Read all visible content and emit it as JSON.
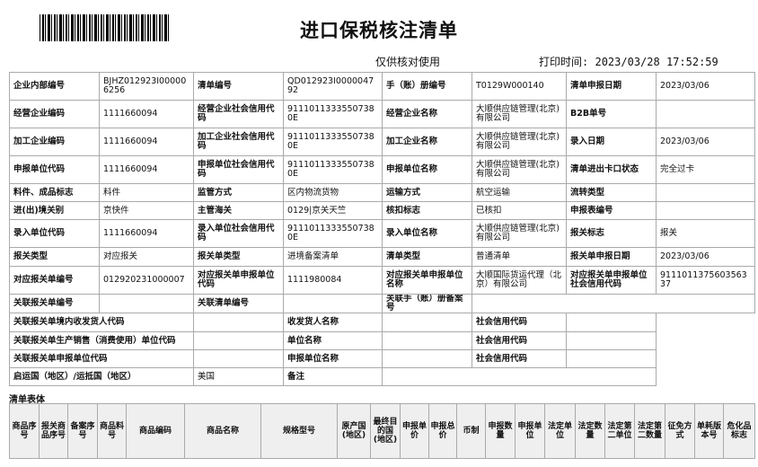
{
  "header": {
    "title": "进口保税核注清单",
    "note": "仅供核对使用",
    "print_time_label": "打印时间:",
    "print_time": "2023/03/28 17:52:59"
  },
  "form": {
    "rows": [
      [
        "企业内部编号",
        "BJHZ012923I000006256",
        "清单编号",
        "QD012923I000004792",
        "手（账）册编号",
        "T0129W000140",
        "清单申报日期",
        "2023/03/06"
      ],
      [
        "经营企业编码",
        "1111660094",
        "经营企业社会信用代码",
        "91110113335507380E",
        "经营企业名称",
        "大顺供应链管理(北京)有限公司",
        "B2B单号"
      ],
      [
        "加工企业编码",
        "1111660094",
        "加工企业社会信用代码",
        "91110113335507380E",
        "加工企业名称",
        "大顺供应链管理(北京)有限公司",
        "录入日期",
        "2023/03/06"
      ],
      [
        "申报单位代码",
        "1111660094",
        "申报单位社会信用代码",
        "91110113335507380E",
        "申报单位名称",
        "大顺供应链管理(北京)有限公司",
        "清单进出卡口状态",
        "完全过卡"
      ],
      [
        "料件、成品标志",
        "料件",
        "监管方式",
        "区内物流货物",
        "运输方式",
        "航空运输",
        "流转类型"
      ],
      [
        "进(出)境关别",
        "京快件",
        "主管海关",
        "0129|京关天竺",
        "核扣标志",
        "已核扣",
        "申报表编号"
      ],
      [
        "录入单位代码",
        "1111660094",
        "录入单位社会信用代码",
        "91110113335507380E",
        "录入单位名称",
        "大顺供应链管理(北京)有限公司",
        "报关标志",
        "报关"
      ],
      [
        "报关类型",
        "对应报关",
        "报关单类型",
        "进境备案清单",
        "清单类型",
        "普通清单",
        "报关单申报日期",
        "2023/03/06"
      ],
      [
        "对应报关单编号",
        "012920231000007",
        "对应报关单申报单位代码",
        "1111980084",
        "对应报关单申报单位名称",
        "大顺国际货运代理（北京）有限公司",
        "对应报关单申报单位社会信用代码",
        "911101137560356337"
      ],
      [
        "关联报关单编号",
        "关联清单编号",
        "关联手（账）册备案号"
      ],
      [
        "关联报关单境内收发货人代码",
        "收发货人名称",
        "社会信用代码"
      ],
      [
        "关联报关单生产销售（消费使用）单位代码",
        "单位名称",
        "社会信用代码"
      ],
      [
        "关联报关单申报单位代码",
        "申报单位名称",
        "社会信用代码"
      ],
      [
        "启运国（地区）/运抵国（地区）",
        "美国",
        "备注"
      ]
    ]
  },
  "body": {
    "title": "清单表体",
    "columns": [
      "商品序号",
      "报关商品序号",
      "备案序号",
      "商品料号",
      "商品编码",
      "商品名称",
      "规格型号",
      "原产国(地区)",
      "最终目的国(地区)",
      "申报单价",
      "申报总价",
      "币制",
      "申报数量",
      "申报单位",
      "法定单位",
      "法定数量",
      "法定第二单位",
      "法定第二数量",
      "征免方式",
      "单耗版本号",
      "危化品标志"
    ]
  }
}
